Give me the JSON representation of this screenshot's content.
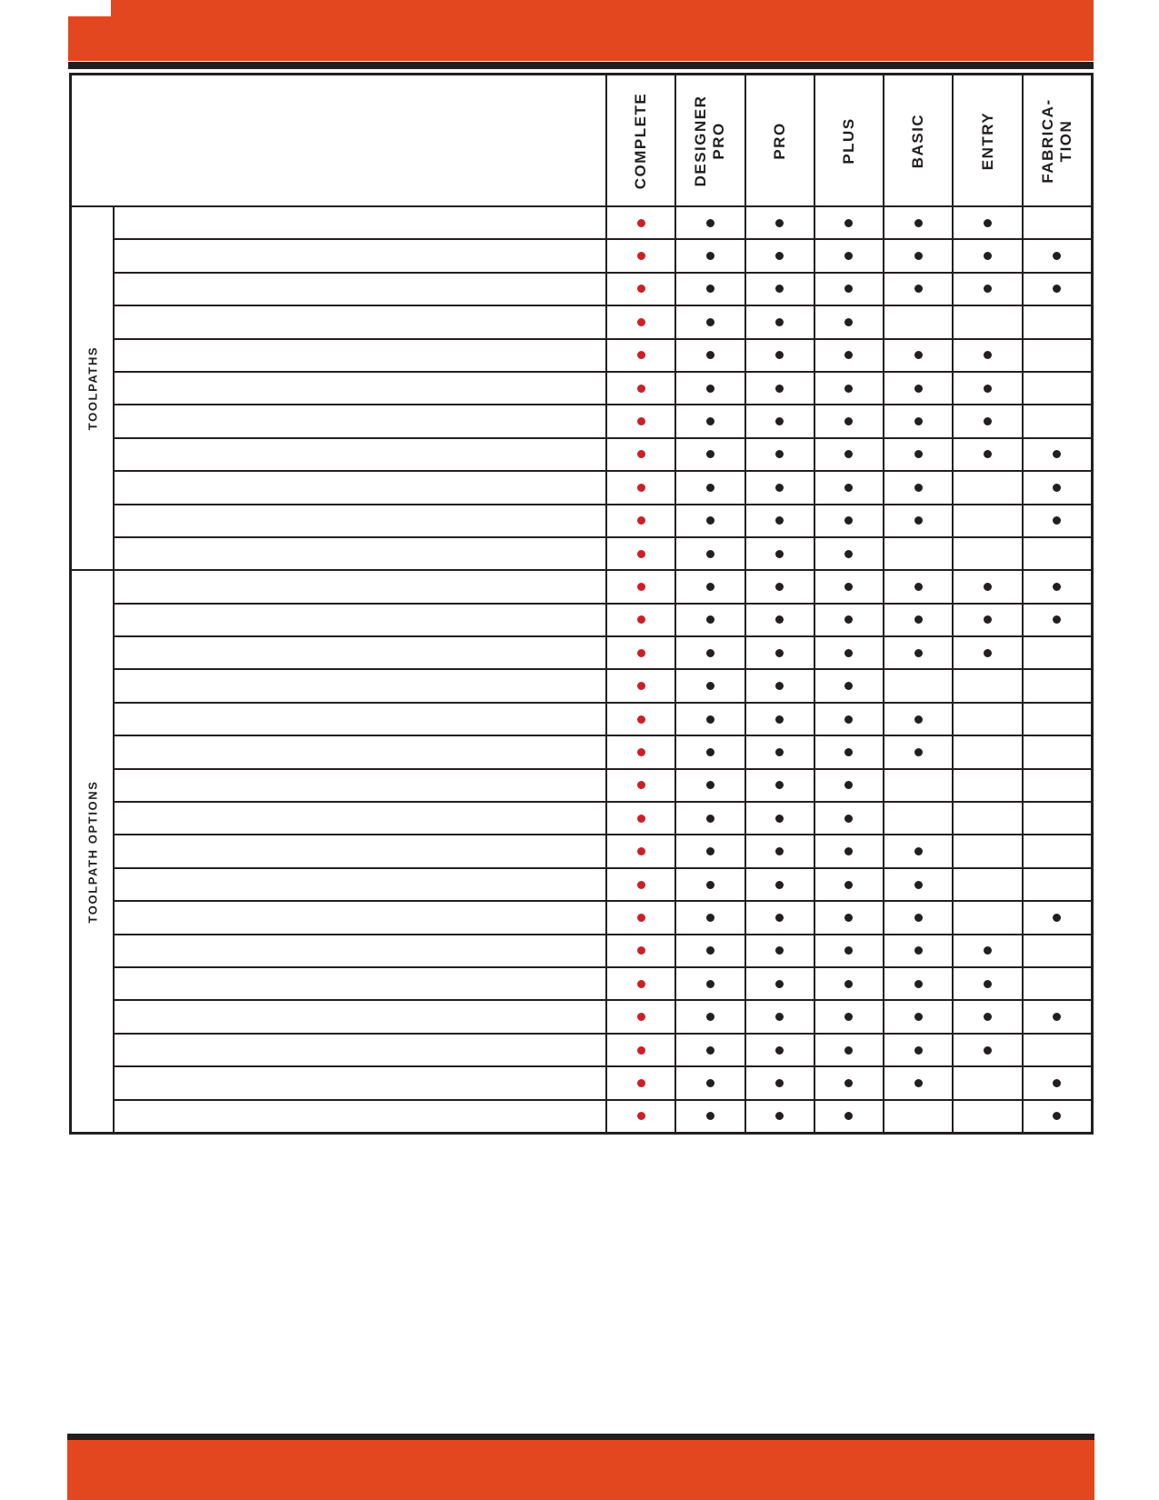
{
  "page": {
    "accent_color": "#E2471F",
    "ink_color": "#231F20",
    "red_dot_color": "#CB2026",
    "black_dot_color": "#231F20"
  },
  "table": {
    "corner_label": "",
    "columns": [
      {
        "id": "complete",
        "label": "COMPLETE",
        "dot_color": "#CB2026"
      },
      {
        "id": "designer-pro",
        "label": "DESIGNER\nPRO",
        "dot_color": "#231F20"
      },
      {
        "id": "pro",
        "label": "PRO",
        "dot_color": "#231F20"
      },
      {
        "id": "plus",
        "label": "PLUS",
        "dot_color": "#231F20"
      },
      {
        "id": "basic",
        "label": "BASIC",
        "dot_color": "#231F20"
      },
      {
        "id": "entry",
        "label": "ENTRY",
        "dot_color": "#231F20"
      },
      {
        "id": "fabrication",
        "label": "FABRICA-\nTION",
        "dot_color": "#231F20"
      }
    ],
    "groups": [
      {
        "label": "TOOLPATHS",
        "rows": [
          {
            "feature": "",
            "dots": [
              1,
              1,
              1,
              1,
              1,
              1,
              0
            ]
          },
          {
            "feature": "",
            "dots": [
              1,
              1,
              1,
              1,
              1,
              1,
              1
            ]
          },
          {
            "feature": "",
            "dots": [
              1,
              1,
              1,
              1,
              1,
              1,
              1
            ]
          },
          {
            "feature": "",
            "dots": [
              1,
              1,
              1,
              1,
              0,
              0,
              0
            ]
          },
          {
            "feature": "",
            "dots": [
              1,
              1,
              1,
              1,
              1,
              1,
              0
            ]
          },
          {
            "feature": "",
            "dots": [
              1,
              1,
              1,
              1,
              1,
              1,
              0
            ]
          },
          {
            "feature": "",
            "dots": [
              1,
              1,
              1,
              1,
              1,
              1,
              0
            ]
          },
          {
            "feature": "",
            "dots": [
              1,
              1,
              1,
              1,
              1,
              1,
              1
            ]
          },
          {
            "feature": "",
            "dots": [
              1,
              1,
              1,
              1,
              1,
              0,
              1
            ]
          },
          {
            "feature": "",
            "dots": [
              1,
              1,
              1,
              1,
              1,
              0,
              1
            ]
          },
          {
            "feature": "",
            "dots": [
              1,
              1,
              1,
              1,
              0,
              0,
              0
            ]
          }
        ]
      },
      {
        "label": "TOOLPATH OPTIONS",
        "rows": [
          {
            "feature": "",
            "dots": [
              1,
              1,
              1,
              1,
              1,
              1,
              1
            ]
          },
          {
            "feature": "",
            "dots": [
              1,
              1,
              1,
              1,
              1,
              1,
              1
            ]
          },
          {
            "feature": "",
            "dots": [
              1,
              1,
              1,
              1,
              1,
              1,
              0
            ]
          },
          {
            "feature": "",
            "dots": [
              1,
              1,
              1,
              1,
              0,
              0,
              0
            ]
          },
          {
            "feature": "",
            "dots": [
              1,
              1,
              1,
              1,
              1,
              0,
              0
            ]
          },
          {
            "feature": "",
            "dots": [
              1,
              1,
              1,
              1,
              1,
              0,
              0
            ]
          },
          {
            "feature": "",
            "dots": [
              1,
              1,
              1,
              1,
              0,
              0,
              0
            ]
          },
          {
            "feature": "",
            "dots": [
              1,
              1,
              1,
              1,
              0,
              0,
              0
            ]
          },
          {
            "feature": "",
            "dots": [
              1,
              1,
              1,
              1,
              1,
              0,
              0
            ]
          },
          {
            "feature": "",
            "dots": [
              1,
              1,
              1,
              1,
              1,
              0,
              0
            ]
          },
          {
            "feature": "",
            "dots": [
              1,
              1,
              1,
              1,
              1,
              0,
              1
            ]
          },
          {
            "feature": "",
            "dots": [
              1,
              1,
              1,
              1,
              1,
              1,
              0
            ]
          },
          {
            "feature": "",
            "dots": [
              1,
              1,
              1,
              1,
              1,
              1,
              0
            ]
          },
          {
            "feature": "",
            "dots": [
              1,
              1,
              1,
              1,
              1,
              1,
              1
            ]
          },
          {
            "feature": "",
            "dots": [
              1,
              1,
              1,
              1,
              1,
              1,
              0
            ]
          },
          {
            "feature": "",
            "dots": [
              1,
              1,
              1,
              1,
              1,
              0,
              1
            ]
          },
          {
            "feature": "",
            "dots": [
              1,
              1,
              1,
              1,
              0,
              0,
              1
            ]
          }
        ]
      }
    ]
  }
}
